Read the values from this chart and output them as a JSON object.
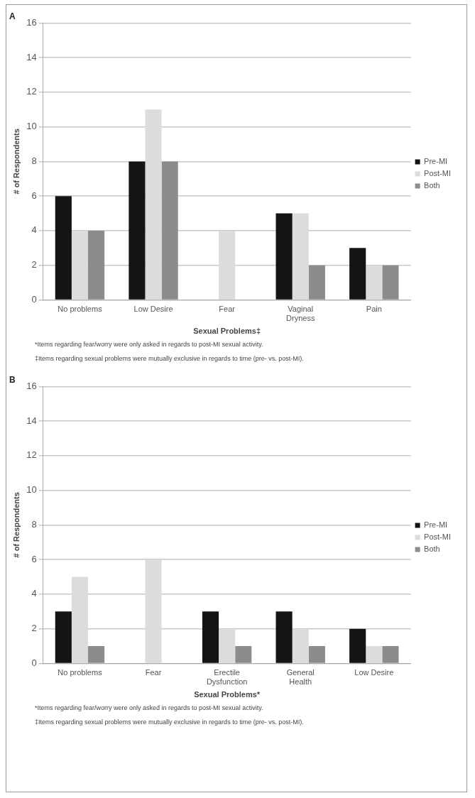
{
  "chart_data": [
    {
      "type": "bar",
      "title": "A",
      "xlabel": "Sexual Problems‡",
      "ylabel": "# of Respondents",
      "categories": [
        "No problems",
        "Low Desire",
        "Fear",
        "Vaginal Dryness",
        "Pain"
      ],
      "series": [
        {
          "name": "Pre-MI",
          "color": "#141414",
          "values": [
            6,
            8,
            null,
            5,
            3
          ]
        },
        {
          "name": "Post-MI",
          "color": "#dcdcdc",
          "values": [
            4,
            11,
            4,
            5,
            2
          ]
        },
        {
          "name": "Both",
          "color": "#8c8c8c",
          "values": [
            4,
            8,
            null,
            2,
            2
          ]
        }
      ],
      "ylim": [
        0,
        16
      ],
      "yticks": [
        0,
        2,
        4,
        6,
        8,
        10,
        12,
        14,
        16
      ],
      "grid": "y",
      "legend": "right",
      "annotations": [
        "*Items regarding fear/worry were only asked in regards to post-MI sexual activity.",
        "‡Items regarding sexual problems were mutually exclusive in regards to time (pre- vs. post-MI)."
      ]
    },
    {
      "type": "bar",
      "title": "B",
      "xlabel": "Sexual Problems*",
      "ylabel": "# of Respondents",
      "categories": [
        "No problems",
        "Fear",
        "Erectile Dysfunction",
        "General Health",
        "Low Desire"
      ],
      "series": [
        {
          "name": "Pre-MI",
          "color": "#141414",
          "values": [
            3,
            null,
            3,
            3,
            2
          ]
        },
        {
          "name": "Post-MI",
          "color": "#dcdcdc",
          "values": [
            5,
            6,
            2,
            2,
            1
          ]
        },
        {
          "name": "Both",
          "color": "#8c8c8c",
          "values": [
            1,
            null,
            1,
            1,
            1
          ]
        }
      ],
      "ylim": [
        0,
        16
      ],
      "yticks": [
        0,
        2,
        4,
        6,
        8,
        10,
        12,
        14,
        16
      ],
      "grid": "y",
      "legend": "right",
      "annotations": [
        "*Items regarding fear/worry were only asked in regards to post-MI sexual activity.",
        "‡Items regarding sexual problems were mutually exclusive in regards to time (pre- vs. post-MI)."
      ]
    }
  ]
}
